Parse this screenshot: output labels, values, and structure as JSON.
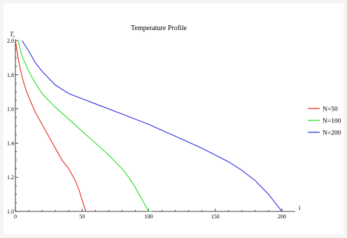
{
  "chart_data": {
    "type": "line",
    "title": "Temperature Profile",
    "xlabel": "i",
    "ylabel": "T_i",
    "xlim": [
      0,
      210
    ],
    "ylim": [
      1.0,
      2.0
    ],
    "xticks": [
      0,
      50,
      100,
      150,
      200
    ],
    "yticks": [
      1.0,
      1.2,
      1.4,
      1.6,
      1.8,
      2.0
    ],
    "xtick_labels": [
      "0",
      "50",
      "100",
      "150",
      "200"
    ],
    "ytick_labels": [
      "1.0",
      "1.2",
      "1.4",
      "1.6",
      "1.8",
      "2.0"
    ],
    "legend_position": "right",
    "grid": false,
    "series": [
      {
        "name": "N=50",
        "color": "#e8271c",
        "x": [
          0,
          2,
          4,
          6,
          8,
          10,
          15,
          20,
          25,
          30,
          35,
          40,
          45,
          48,
          50,
          52,
          53
        ],
        "y": [
          2.0,
          1.9,
          1.82,
          1.76,
          1.71,
          1.67,
          1.58,
          1.51,
          1.44,
          1.37,
          1.3,
          1.25,
          1.18,
          1.12,
          1.07,
          1.02,
          1.0
        ]
      },
      {
        "name": "N=100",
        "color": "#22dd22",
        "x": [
          2,
          5,
          10,
          15,
          20,
          30,
          40,
          50,
          60,
          70,
          80,
          85,
          90,
          95,
          100,
          102
        ],
        "y": [
          2.0,
          1.91,
          1.82,
          1.75,
          1.69,
          1.61,
          1.54,
          1.47,
          1.4,
          1.33,
          1.25,
          1.2,
          1.14,
          1.07,
          1.0,
          1.0
        ]
      },
      {
        "name": "N=200",
        "color": "#2b2bde",
        "x": [
          5,
          10,
          15,
          20,
          30,
          40,
          50,
          60,
          80,
          100,
          120,
          140,
          160,
          170,
          180,
          190,
          195,
          200
        ],
        "y": [
          2.0,
          1.94,
          1.87,
          1.82,
          1.74,
          1.69,
          1.66,
          1.63,
          1.57,
          1.51,
          1.44,
          1.37,
          1.29,
          1.24,
          1.18,
          1.1,
          1.05,
          1.0
        ]
      }
    ]
  }
}
